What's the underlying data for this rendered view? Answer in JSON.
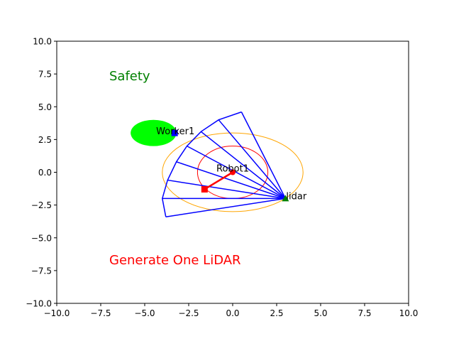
{
  "chart_data": {
    "type": "scatter",
    "title": "",
    "xlabel": "",
    "ylabel": "",
    "xlim": [
      -10,
      10
    ],
    "ylim": [
      -10,
      10
    ],
    "xticks": [
      "−10.0",
      "−7.5",
      "−5.0",
      "−2.5",
      "0.0",
      "2.5",
      "5.0",
      "7.5",
      "10.0"
    ],
    "yticks": [
      "−10.0",
      "−7.5",
      "−5.0",
      "−2.5",
      "0.0",
      "2.5",
      "5.0",
      "7.5",
      "10.0"
    ],
    "xtick_values": [
      -10,
      -7.5,
      -5,
      -2.5,
      0,
      2.5,
      5,
      7.5,
      10
    ],
    "ytick_values": [
      -10,
      -7.5,
      -5,
      -2.5,
      0,
      2.5,
      5,
      7.5,
      10
    ],
    "grid": false,
    "annotations": [
      {
        "text": "Safety",
        "x": -7.0,
        "y": 7.2,
        "color": "#008000"
      },
      {
        "text": "Generate One LiDAR",
        "x": -7.0,
        "y": -6.8,
        "color": "#ff0000"
      }
    ],
    "safety_zone": {
      "cx": -4.5,
      "cy": 3.0,
      "rx": 1.3,
      "ry": 1.0,
      "color": "#00ff00"
    },
    "worker": {
      "label": "Worker1",
      "x": -3.3,
      "y": 3.0,
      "color": "#0000ff"
    },
    "robot": {
      "label": "Robot1",
      "base": {
        "x": 0.0,
        "y": 0.0
      },
      "end": {
        "x": -1.6,
        "y": -1.3
      },
      "color": "#ff0000",
      "inner_circle_radius": 2.0,
      "inner_circle_color": "#ff0000",
      "outer_ellipse": {
        "rx": 4.0,
        "ry": 3.0
      },
      "outer_ellipse_color": "#ffa500"
    },
    "lidar": {
      "label": "lidar",
      "x": 3.0,
      "y": -2.0,
      "color": "#008000",
      "ray_color": "#0000ff",
      "ray_ends": [
        {
          "x": -3.8,
          "y": -3.4
        },
        {
          "x": -4.0,
          "y": -2.0
        },
        {
          "x": -3.7,
          "y": -0.6
        },
        {
          "x": -3.2,
          "y": 0.8
        },
        {
          "x": -2.6,
          "y": 2.0
        },
        {
          "x": -1.8,
          "y": 3.1
        },
        {
          "x": -0.8,
          "y": 4.0
        },
        {
          "x": 0.5,
          "y": 4.6
        }
      ]
    }
  }
}
